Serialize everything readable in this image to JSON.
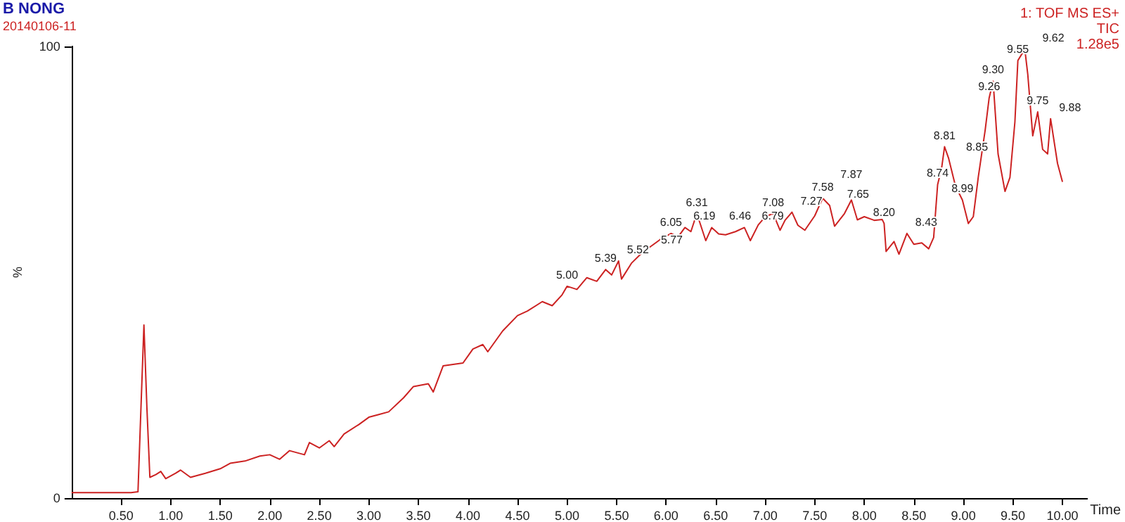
{
  "chart_data": {
    "type": "line",
    "title": "B NONG",
    "subtitle": "20140106-11",
    "xlabel": "Time",
    "ylabel": "%",
    "x": [
      0,
      0.3,
      0.6,
      0.67,
      0.7,
      0.73,
      0.76,
      0.79,
      0.85,
      0.9,
      0.95,
      1.05,
      1.1,
      1.2,
      1.35,
      1.5,
      1.6,
      1.75,
      1.9,
      2.0,
      2.1,
      2.2,
      2.35,
      2.4,
      2.5,
      2.6,
      2.65,
      2.75,
      2.9,
      3.0,
      3.1,
      3.2,
      3.35,
      3.45,
      3.6,
      3.65,
      3.75,
      3.85,
      3.95,
      4.05,
      4.15,
      4.2,
      4.35,
      4.5,
      4.6,
      4.75,
      4.85,
      4.95,
      5.0,
      5.1,
      5.2,
      5.3,
      5.39,
      5.45,
      5.52,
      5.55,
      5.65,
      5.77,
      5.85,
      5.95,
      6.05,
      6.12,
      6.19,
      6.25,
      6.31,
      6.4,
      6.46,
      6.53,
      6.6,
      6.7,
      6.79,
      6.85,
      6.93,
      7.0,
      7.08,
      7.15,
      7.2,
      7.27,
      7.33,
      7.4,
      7.5,
      7.58,
      7.65,
      7.7,
      7.8,
      7.87,
      7.93,
      8.0,
      8.1,
      8.18,
      8.2,
      8.22,
      8.3,
      8.35,
      8.43,
      8.5,
      8.58,
      8.65,
      8.7,
      8.74,
      8.78,
      8.81,
      8.85,
      8.92,
      8.99,
      9.05,
      9.1,
      9.15,
      9.22,
      9.26,
      9.3,
      9.35,
      9.42,
      9.47,
      9.52,
      9.55,
      9.62,
      9.65,
      9.7,
      9.75,
      9.8,
      9.85,
      9.88,
      9.95,
      10.0
    ],
    "series": [
      {
        "color": "#cc2222",
        "values": [
          1.2,
          1.2,
          1.2,
          1.4,
          20,
          38.3,
          20,
          4.6,
          5.2,
          5.9,
          4.3,
          5.5,
          6.2,
          4.6,
          5.5,
          6.5,
          7.7,
          8.2,
          9.3,
          9.6,
          8.6,
          10.5,
          9.6,
          12.3,
          11.1,
          12.7,
          11.4,
          14.2,
          16.3,
          17.9,
          18.5,
          19.1,
          22.2,
          24.7,
          25.3,
          23.5,
          29.3,
          29.6,
          29.9,
          33,
          34,
          32.4,
          37,
          40.4,
          41.4,
          43.5,
          42.6,
          45,
          46.9,
          46.2,
          48.8,
          48,
          50.6,
          49.4,
          52.5,
          48.5,
          52,
          54.6,
          55.8,
          57.4,
          58.6,
          57.8,
          59.9,
          59,
          63,
          57,
          59.9,
          58.5,
          58.3,
          59,
          59.9,
          57,
          60.5,
          62.3,
          63,
          59.3,
          61.5,
          63.3,
          60.4,
          59.3,
          62.5,
          66.4,
          64.8,
          60.2,
          63,
          66,
          61.6,
          62.3,
          61.5,
          61.7,
          60.8,
          54.6,
          56.8,
          54,
          58.6,
          56.2,
          56.5,
          55.2,
          57.7,
          69.4,
          73,
          77.8,
          75.3,
          69.1,
          66,
          60.8,
          62.3,
          71,
          81.5,
          88.6,
          92.3,
          76.2,
          67.9,
          71,
          83.3,
          96.9,
          99.4,
          93.8,
          80.2,
          85.5,
          77.2,
          76.2,
          84,
          74.1,
          70
        ]
      }
    ],
    "xlim": [
      0,
      10.25
    ],
    "ylim": [
      0,
      100
    ],
    "xticks": [
      {
        "value": 0.5,
        "label": "0.50"
      },
      {
        "value": 1,
        "label": "1.00"
      },
      {
        "value": 1.5,
        "label": "1.50"
      },
      {
        "value": 2,
        "label": "2.00"
      },
      {
        "value": 2.5,
        "label": "2.50"
      },
      {
        "value": 3,
        "label": "3.00"
      },
      {
        "value": 3.5,
        "label": "3.50"
      },
      {
        "value": 4,
        "label": "4.00"
      },
      {
        "value": 4.5,
        "label": "4.50"
      },
      {
        "value": 5,
        "label": "5.00"
      },
      {
        "value": 5.5,
        "label": "5.50"
      },
      {
        "value": 6,
        "label": "6.00"
      },
      {
        "value": 6.5,
        "label": "6.50"
      },
      {
        "value": 7,
        "label": "7.00"
      },
      {
        "value": 7.5,
        "label": "7.50"
      },
      {
        "value": 8,
        "label": "8.00"
      },
      {
        "value": 8.5,
        "label": "8.50"
      },
      {
        "value": 9,
        "label": "9.00"
      },
      {
        "value": 9.5,
        "label": "9.50"
      },
      {
        "value": 10,
        "label": "10.00"
      }
    ],
    "yticks": [
      0,
      100
    ],
    "annotations": [
      {
        "text": "5.00",
        "x": 5.0,
        "y": 46.9
      },
      {
        "text": "5.39",
        "x": 5.39,
        "y": 50.6
      },
      {
        "text": "5.52",
        "x": 5.52,
        "y": 52.5
      },
      {
        "text": "5.77",
        "x": 5.77,
        "y": 54.6
      },
      {
        "text": "6.05",
        "x": 6.05,
        "y": 58.6
      },
      {
        "text": "6.19",
        "x": 6.19,
        "y": 59.9
      },
      {
        "text": "6.31",
        "x": 6.31,
        "y": 63
      },
      {
        "text": "6.46",
        "x": 6.46,
        "y": 59.9
      },
      {
        "text": "6.79",
        "x": 6.79,
        "y": 59.9
      },
      {
        "text": "7.08",
        "x": 7.08,
        "y": 63
      },
      {
        "text": "7.27",
        "x": 7.27,
        "y": 63.3
      },
      {
        "text": "7.58",
        "x": 7.58,
        "y": 66.4
      },
      {
        "text": "7.65",
        "x": 7.65,
        "y": 64.8
      },
      {
        "text": "7.87",
        "x": 7.87,
        "y": 66
      },
      {
        "text": "8.20",
        "x": 8.2,
        "y": 60.8
      },
      {
        "text": "8.43",
        "x": 8.43,
        "y": 58.6
      },
      {
        "text": "8.74",
        "x": 8.74,
        "y": 69.4
      },
      {
        "text": "8.81",
        "x": 8.81,
        "y": 77.8
      },
      {
        "text": "8.85",
        "x": 8.85,
        "y": 75.3
      },
      {
        "text": "8.99",
        "x": 8.99,
        "y": 66
      },
      {
        "text": "9.26",
        "x": 9.26,
        "y": 88.6
      },
      {
        "text": "9.30",
        "x": 9.3,
        "y": 92.3
      },
      {
        "text": "9.55",
        "x": 9.55,
        "y": 96.9
      },
      {
        "text": "9.62",
        "x": 9.62,
        "y": 99.4
      },
      {
        "text": "9.75",
        "x": 9.75,
        "y": 85.5
      },
      {
        "text": "9.88",
        "x": 9.88,
        "y": 84
      },
      "1: TOF MS ES+",
      "TIC",
      "1.28e5"
    ],
    "grid": false,
    "marker": "none",
    "line_style": "solid"
  }
}
